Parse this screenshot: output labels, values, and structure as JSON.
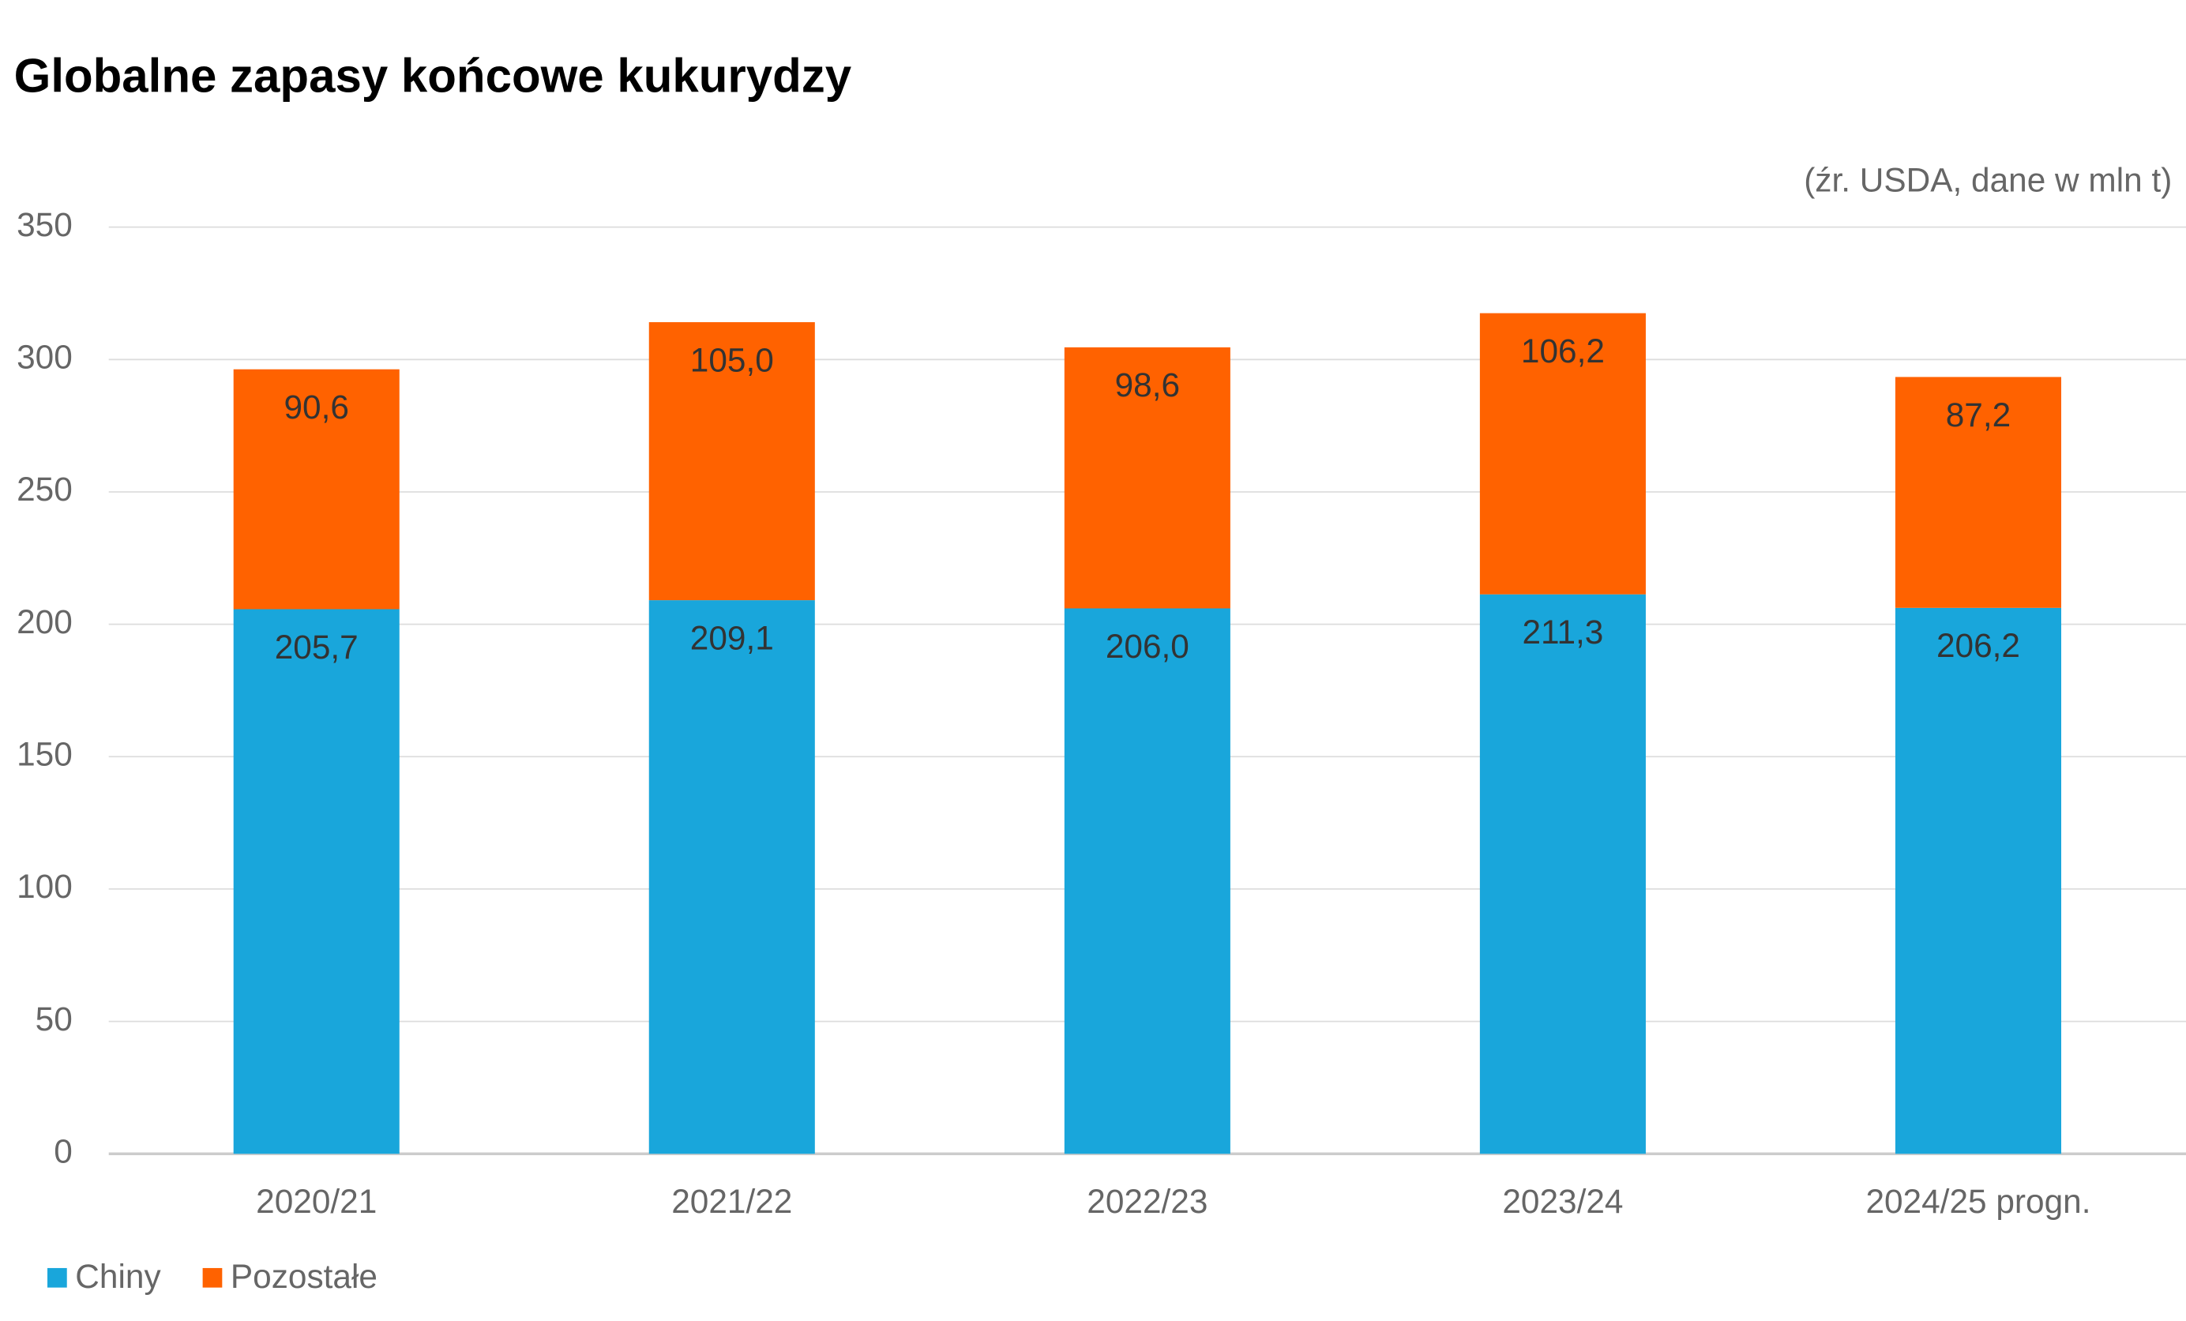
{
  "chart_data": {
    "type": "stacked_bar",
    "title": "Globalne zapasy końcowe kukurydzy",
    "annotation": "(źr. USDA, dane w mln t)",
    "categories": [
      "2020/21",
      "2021/22",
      "2022/23",
      "2023/24",
      "2024/25 progn."
    ],
    "series": [
      {
        "name": "Chiny",
        "color": "#19a6db",
        "values": [
          205.7,
          209.1,
          206.0,
          211.3,
          206.2
        ],
        "value_labels": [
          "205,7",
          "209,1",
          "206,0",
          "211,3",
          "206,2"
        ]
      },
      {
        "name": "Pozostałe",
        "color": "#ff6200",
        "values": [
          90.6,
          105.0,
          98.6,
          106.2,
          87.2
        ],
        "value_labels": [
          "90,6",
          "105,0",
          "98,6",
          "106,2",
          "87,2"
        ]
      }
    ],
    "ylim": [
      0,
      350
    ],
    "yticks": [
      0,
      50,
      100,
      150,
      200,
      250,
      300,
      350
    ],
    "grid": true,
    "legend": "bottom-left"
  }
}
